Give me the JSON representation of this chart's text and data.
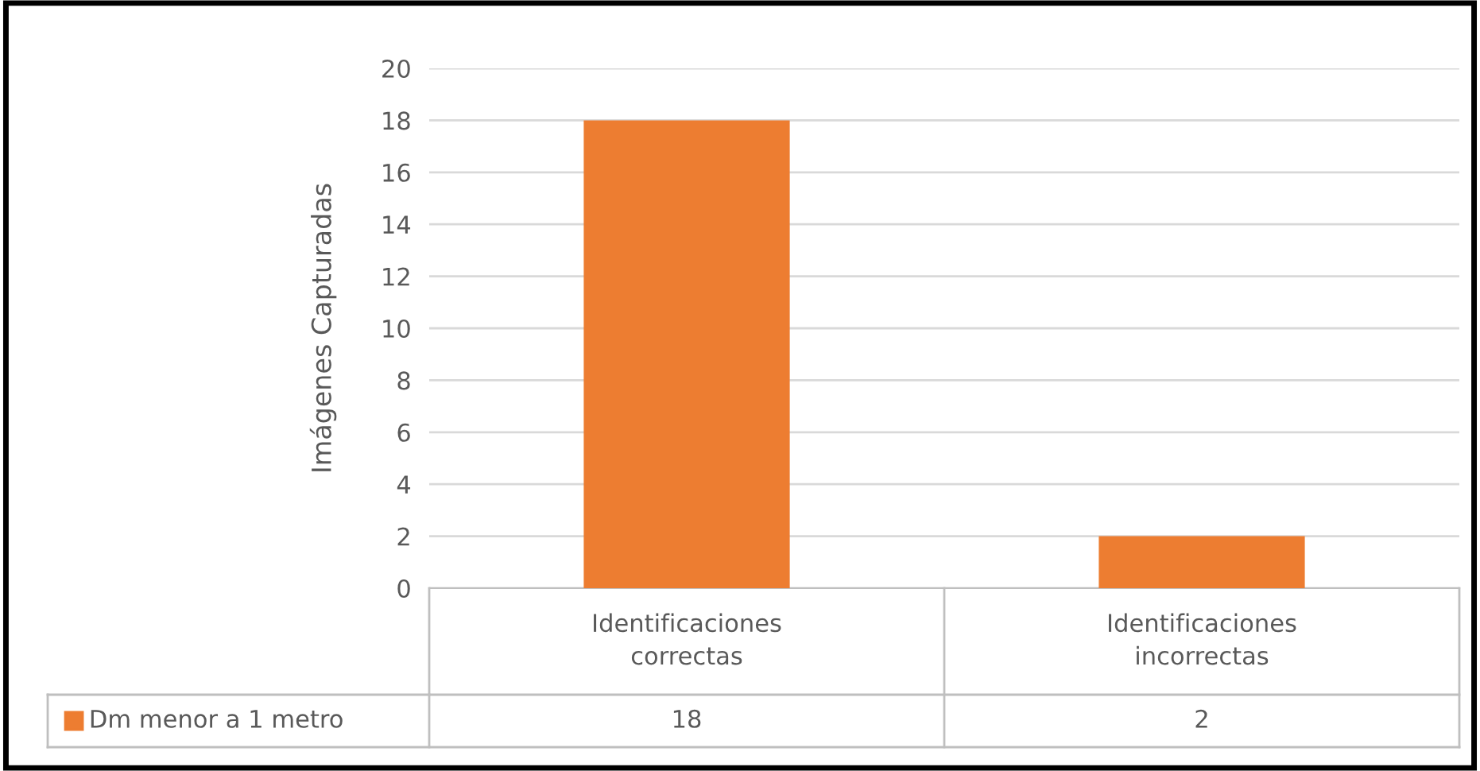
{
  "chart_data": {
    "type": "bar",
    "ylabel": "Imágenes Capturadas",
    "categories": [
      "Identificaciones\ncorrectas",
      "Identificaciones\nincorrectas"
    ],
    "series": [
      {
        "name": "Dm menor a 1 metro",
        "color": "#ed7d31",
        "values": [
          18,
          2
        ]
      }
    ],
    "ylim": [
      0,
      20
    ],
    "yticks": [
      0,
      2,
      4,
      6,
      8,
      10,
      12,
      14,
      16,
      18,
      20
    ],
    "grid": "y",
    "legend": "bottom",
    "data_labels": true
  }
}
